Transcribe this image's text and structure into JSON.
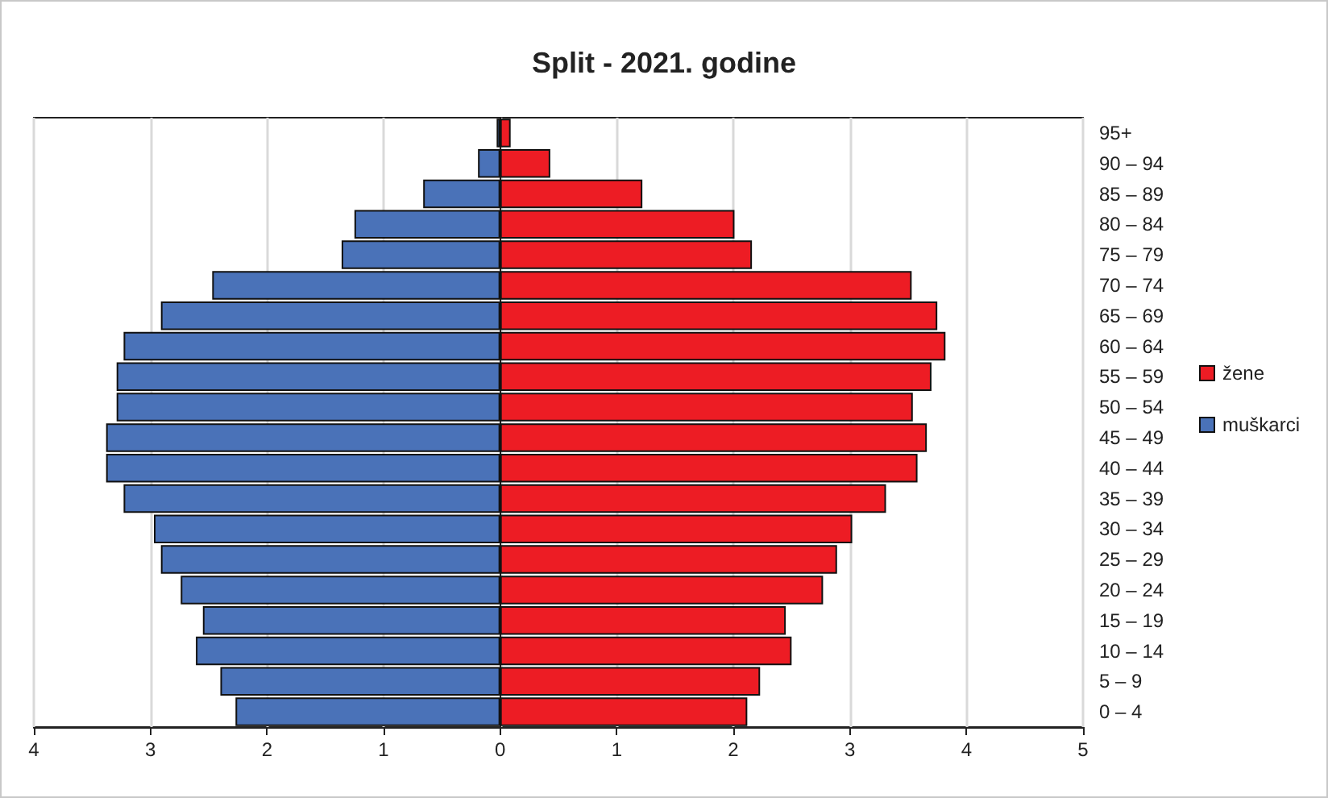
{
  "chart_data": {
    "type": "bar",
    "orientation": "horizontal",
    "title": "Split - 2021. godine",
    "categories": [
      "95+",
      "90 – 94",
      "85 – 89",
      "80 – 84",
      "75 – 79",
      "70 – 74",
      "65 – 69",
      "60 – 64",
      "55 – 59",
      "50 – 54",
      "45 – 49",
      "40 – 44",
      "35 – 39",
      "30 – 34",
      "25 – 29",
      "20 – 24",
      "15 – 19",
      "10 – 14",
      "5 – 9",
      "0 – 4"
    ],
    "series": [
      {
        "name": "žene",
        "color": "#ed1c24",
        "values": [
          0.09,
          0.43,
          1.22,
          2.01,
          2.16,
          3.53,
          3.75,
          3.82,
          3.7,
          3.54,
          3.66,
          3.58,
          3.31,
          3.02,
          2.89,
          2.77,
          2.45,
          2.5,
          2.23,
          2.12
        ]
      },
      {
        "name": "muškarci",
        "color": "#4a72b8",
        "values": [
          -0.03,
          -0.19,
          -0.66,
          -1.25,
          -1.36,
          -2.47,
          -2.91,
          -3.23,
          -3.29,
          -3.29,
          -3.38,
          -3.38,
          -3.23,
          -2.97,
          -2.91,
          -2.74,
          -2.55,
          -2.61,
          -2.4,
          -2.27
        ]
      }
    ],
    "xlim": [
      -4,
      5
    ],
    "xticks": [
      {
        "value": -4,
        "label": "4"
      },
      {
        "value": -3,
        "label": "3"
      },
      {
        "value": -2,
        "label": "2"
      },
      {
        "value": -1,
        "label": "1"
      },
      0,
      1,
      2,
      3,
      4,
      5
    ],
    "grid": "x",
    "legend": "right",
    "stacked": true
  }
}
